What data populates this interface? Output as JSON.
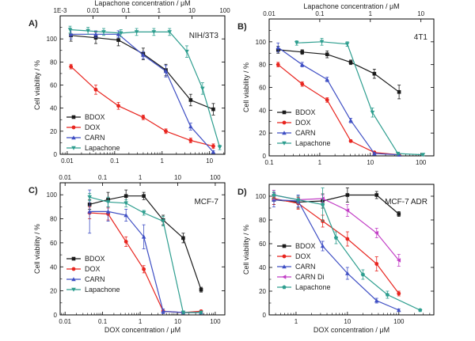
{
  "colors": {
    "BDOX": "#1a1a1a",
    "DOX": "#e8251f",
    "CARN": "#3f4fc4",
    "CARN Di": "#c23fc6",
    "Lapachone": "#2e9e8f"
  },
  "chart_data": [
    {
      "type": "line",
      "panel_label": "A)",
      "cell_line": "NIH/3T3",
      "ylabel": "Cell viability / %",
      "xlabel": "",
      "top_xlabel": "Lapachone concentration / μM",
      "xscale": "log",
      "xlim": [
        0.0071,
        21
      ],
      "ylim": [
        0,
        120
      ],
      "yticks": [
        0,
        20,
        40,
        60,
        80,
        100
      ],
      "ytick_labels": [
        "0",
        "20",
        "40",
        "60",
        "80",
        "100"
      ],
      "bottom_ticks": [
        0.01,
        0.1,
        1,
        10
      ],
      "bottom_tick_labels": [
        "0.01",
        "0.1",
        "1",
        "10"
      ],
      "top_lim": [
        0.001,
        100
      ],
      "top_ticks": [
        0.001,
        0.01,
        0.1,
        1,
        10,
        100
      ],
      "top_tick_labels": [
        "1E-3",
        "0.01",
        "0.1",
        "1",
        "10",
        "100"
      ],
      "legend_position": "bottom-left",
      "series": [
        {
          "name": "BDOX",
          "marker": "square",
          "axis": "bottom",
          "x": [
            0.012,
            0.04,
            0.12,
            0.4,
            1.2,
            4,
            12
          ],
          "y": [
            103,
            101,
            99,
            87,
            73,
            47,
            39
          ],
          "err": [
            5,
            5,
            5,
            5,
            5,
            5,
            5
          ]
        },
        {
          "name": "DOX",
          "marker": "circle",
          "axis": "bottom",
          "x": [
            0.012,
            0.04,
            0.12,
            0.4,
            1.2,
            4,
            12
          ],
          "y": [
            76,
            56,
            42,
            32,
            20,
            12,
            7
          ],
          "err": [
            2,
            4,
            3,
            2,
            2,
            2,
            2
          ]
        },
        {
          "name": "CARN",
          "marker": "triangle-up",
          "axis": "bottom",
          "x": [
            0.012,
            0.04,
            0.12,
            0.4,
            1.2,
            4,
            12
          ],
          "y": [
            104,
            104,
            104,
            86,
            72,
            24,
            2
          ],
          "err": [
            4,
            3,
            3,
            3,
            5,
            3,
            1
          ]
        },
        {
          "name": "Lapachone",
          "marker": "triangle-down",
          "axis": "top",
          "x": [
            0.002,
            0.007,
            0.021,
            0.07,
            0.21,
            0.7,
            2.1,
            7,
            21,
            70
          ],
          "y": [
            108,
            107,
            106,
            105,
            106,
            106,
            106,
            89,
            57,
            6
          ],
          "err": [
            3,
            3,
            3,
            3,
            3,
            3,
            3,
            5,
            5,
            2
          ]
        }
      ]
    },
    {
      "type": "line",
      "panel_label": "B)",
      "cell_line": "4T1",
      "ylabel": "Cell viability / %",
      "xlabel": "",
      "top_xlabel": "Lapachone concentration / μM",
      "xscale": "log",
      "xlim": [
        0.1,
        180
      ],
      "ylim": [
        0,
        120
      ],
      "yticks": [
        0,
        20,
        40,
        60,
        80,
        100
      ],
      "ytick_labels": [
        "0",
        "20",
        "40",
        "60",
        "80",
        "100"
      ],
      "bottom_ticks": [
        0.1,
        1,
        10,
        100
      ],
      "bottom_tick_labels": [
        "0.1",
        "1",
        "10",
        "100"
      ],
      "top_lim": [
        0.01,
        18
      ],
      "top_ticks": [
        0.01,
        0.1,
        1,
        10
      ],
      "top_tick_labels": [
        "0.01",
        "0.1",
        "1",
        "10"
      ],
      "legend_position": "bottom-left",
      "series": [
        {
          "name": "BDOX",
          "marker": "square",
          "axis": "bottom",
          "x": [
            0.15,
            0.45,
            1.4,
            4.1,
            12,
            37
          ],
          "y": [
            93,
            91,
            89,
            82,
            72,
            56
          ],
          "err": [
            3,
            2,
            3,
            2,
            4,
            6
          ]
        },
        {
          "name": "DOX",
          "marker": "circle",
          "axis": "bottom",
          "x": [
            0.15,
            0.45,
            1.4,
            4.1,
            12,
            37
          ],
          "y": [
            80,
            63,
            49,
            13,
            3,
            1
          ],
          "err": [
            2,
            2,
            2,
            1,
            1,
            1
          ]
        },
        {
          "name": "CARN",
          "marker": "triangle-up",
          "axis": "bottom",
          "x": [
            0.15,
            0.45,
            1.4,
            4.1,
            12,
            37
          ],
          "y": [
            95,
            80,
            67,
            31,
            2,
            1
          ],
          "err": [
            4,
            2,
            2,
            2,
            1,
            1
          ]
        },
        {
          "name": "Lapachone",
          "marker": "triangle-down",
          "axis": "top",
          "x": [
            0.035,
            0.11,
            0.35,
            1.1,
            3.5,
            11
          ],
          "y": [
            99,
            100,
            98,
            38,
            2,
            1
          ],
          "err": [
            2,
            3,
            2,
            4,
            1,
            1
          ]
        }
      ]
    },
    {
      "type": "line",
      "panel_label": "C)",
      "cell_line": "MCF-7",
      "ylabel": "Cell viability / %",
      "xlabel": "DOX concentration / μM",
      "xscale": "log",
      "xlim": [
        0.0074,
        180
      ],
      "ylim": [
        0,
        110
      ],
      "yticks": [
        0,
        20,
        40,
        60,
        80,
        100
      ],
      "ytick_labels": [
        "0",
        "20",
        "40",
        "60",
        "80",
        "100"
      ],
      "bottom_ticks": [
        0.01,
        0.1,
        1,
        10,
        100
      ],
      "bottom_tick_labels": [
        "0.01",
        "0.1",
        "1",
        "10",
        "100"
      ],
      "top_lim": [
        0.0074,
        180
      ],
      "top_ticks": [
        0.01,
        0.1,
        1,
        10,
        100
      ],
      "top_tick_labels": [
        "0.01",
        "0.1",
        "1",
        "10",
        "100"
      ],
      "legend_position": "bottom-left",
      "series": [
        {
          "name": "BDOX",
          "marker": "square",
          "axis": "bottom",
          "x": [
            0.045,
            0.14,
            0.42,
            1.25,
            4.1,
            14,
            42
          ],
          "y": [
            92,
            96,
            99,
            99,
            79,
            64,
            21
          ],
          "err": [
            4,
            6,
            5,
            3,
            4,
            4,
            2
          ]
        },
        {
          "name": "DOX",
          "marker": "circle",
          "axis": "bottom",
          "x": [
            0.045,
            0.14,
            0.42,
            1.25,
            4.1,
            14,
            42
          ],
          "y": [
            85,
            84,
            61,
            38,
            3,
            2,
            3
          ],
          "err": [
            5,
            5,
            4,
            3,
            1,
            1,
            1
          ]
        },
        {
          "name": "CARN",
          "marker": "triangle-up",
          "axis": "bottom",
          "x": [
            0.045,
            0.14,
            0.42,
            1.25,
            4.1,
            14,
            42
          ],
          "y": [
            86,
            86,
            83,
            65,
            3,
            2,
            2
          ],
          "err": [
            18,
            8,
            5,
            10,
            2,
            1,
            1
          ]
        },
        {
          "name": "Lapachone",
          "marker": "triangle-down",
          "axis": "bottom",
          "x": [
            0.045,
            0.14,
            0.42,
            1.25,
            4.1,
            14,
            42
          ],
          "y": [
            98,
            94,
            93,
            85,
            78,
            2,
            2
          ],
          "err": [
            3,
            4,
            3,
            2,
            4,
            1,
            1
          ]
        }
      ]
    },
    {
      "type": "line",
      "panel_label": "D)",
      "cell_line": "MCF-7 ADR",
      "ylabel": "Cell viability / %",
      "xlabel": "DOX concentration / μM",
      "xscale": "log",
      "xlim": [
        0.3,
        480
      ],
      "ylim": [
        0,
        110
      ],
      "yticks": [
        0,
        20,
        40,
        60,
        80,
        100
      ],
      "ytick_labels": [
        "0",
        "20",
        "40",
        "60",
        "80",
        "100"
      ],
      "bottom_ticks": [
        1,
        10,
        100
      ],
      "bottom_tick_labels": [
        "1",
        "10",
        "100"
      ],
      "top_lim": [
        0.3,
        480
      ],
      "top_ticks": [],
      "top_tick_labels": [],
      "legend_position": "bottom-left",
      "series": [
        {
          "name": "BDOX",
          "marker": "square",
          "axis": "bottom",
          "x": [
            0.37,
            1.1,
            3.3,
            10,
            37,
            100
          ],
          "y": [
            97,
            95,
            96,
            101,
            101,
            85
          ],
          "err": [
            4,
            5,
            6,
            6,
            3,
            2
          ]
        },
        {
          "name": "DOX",
          "marker": "circle",
          "axis": "bottom",
          "x": [
            0.37,
            1.1,
            3.3,
            10,
            37,
            100
          ],
          "y": [
            98,
            94,
            79,
            64,
            43,
            18
          ],
          "err": [
            5,
            5,
            5,
            6,
            6,
            2
          ]
        },
        {
          "name": "CARN",
          "marker": "triangle-up",
          "axis": "bottom",
          "x": [
            0.37,
            1.1,
            3.3,
            10,
            37,
            100
          ],
          "y": [
            97,
            96,
            58,
            35,
            12,
            4
          ],
          "err": [
            6,
            5,
            4,
            5,
            2,
            1
          ]
        },
        {
          "name": "CARN Di",
          "marker": "triangle-left",
          "axis": "bottom",
          "x": [
            0.37,
            1.1,
            3.3,
            10,
            37,
            100
          ],
          "y": [
            101,
            97,
            98,
            88,
            69,
            46
          ],
          "err": [
            4,
            3,
            3,
            5,
            4,
            5
          ]
        },
        {
          "name": "Lapachone",
          "marker": "pentagon",
          "axis": "bottom",
          "x": [
            0.37,
            1.1,
            3.3,
            6,
            20,
            60,
            260
          ],
          "y": [
            101,
            97,
            93,
            65,
            34,
            17,
            4
          ],
          "err": [
            3,
            3,
            14,
            5,
            4,
            3,
            1
          ]
        }
      ]
    }
  ]
}
